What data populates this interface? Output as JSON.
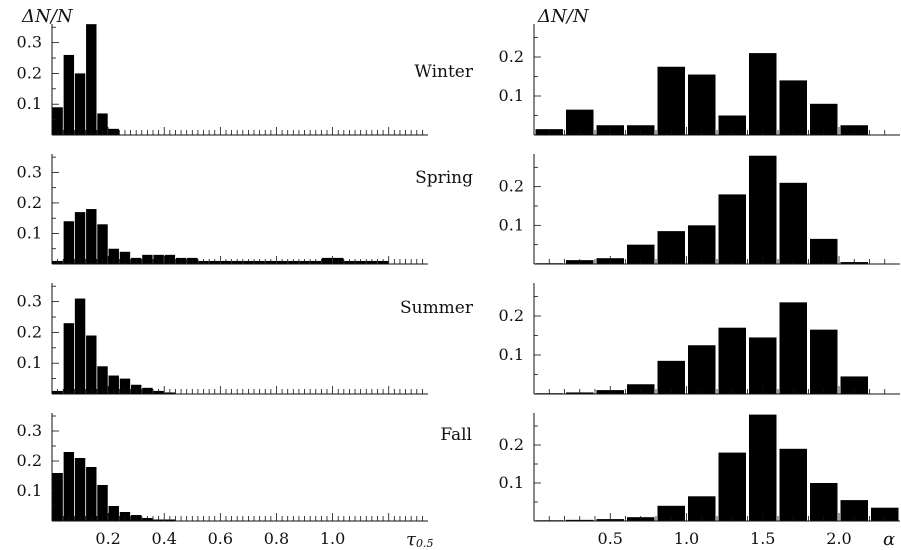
{
  "figure": {
    "ylabel_left": "ΔN/N",
    "ylabel_right": "ΔN/N",
    "xlabel_left": "τ",
    "xlabel_left_sub": "0.5",
    "xlabel_right": "α"
  },
  "chart_data": [
    {
      "type": "bar",
      "panel": "left",
      "season": "Winter",
      "xlim": [
        0.0,
        1.34
      ],
      "ylim": [
        0.0,
        0.38
      ],
      "bin_width": 0.04,
      "bin_starts": [
        0.0,
        0.04,
        0.08,
        0.12,
        0.16,
        0.2
      ],
      "values": [
        0.09,
        0.26,
        0.2,
        0.36,
        0.07,
        0.02
      ],
      "yticks": [
        0.1,
        0.2,
        0.3
      ],
      "ytick_labels": [
        "0.1",
        "0.2",
        "0.3"
      ]
    },
    {
      "type": "bar",
      "panel": "left",
      "season": "Spring",
      "xlim": [
        0.0,
        1.34
      ],
      "ylim": [
        0.0,
        0.38
      ],
      "bin_width": 0.04,
      "bin_starts": [
        0.0,
        0.04,
        0.08,
        0.12,
        0.16,
        0.2,
        0.24,
        0.28,
        0.32,
        0.36,
        0.4,
        0.44,
        0.48,
        0.52,
        0.56,
        0.6,
        0.64,
        0.68,
        0.72,
        0.76,
        0.8,
        0.84,
        0.88,
        0.92,
        0.96,
        1.0,
        1.04,
        1.08,
        1.12,
        1.16
      ],
      "values": [
        0.01,
        0.14,
        0.17,
        0.18,
        0.13,
        0.05,
        0.04,
        0.02,
        0.03,
        0.03,
        0.03,
        0.02,
        0.02,
        0.01,
        0.01,
        0.01,
        0.01,
        0.01,
        0.01,
        0.01,
        0.01,
        0.01,
        0.01,
        0.01,
        0.02,
        0.02,
        0.01,
        0.01,
        0.01,
        0.01
      ],
      "yticks": [
        0.1,
        0.2,
        0.3
      ],
      "ytick_labels": [
        "0.1",
        "0.2",
        "0.3"
      ]
    },
    {
      "type": "bar",
      "panel": "left",
      "season": "Summer",
      "xlim": [
        0.0,
        1.34
      ],
      "ylim": [
        0.0,
        0.38
      ],
      "bin_width": 0.04,
      "bin_starts": [
        0.0,
        0.04,
        0.08,
        0.12,
        0.16,
        0.2,
        0.24,
        0.28,
        0.32,
        0.36,
        0.4
      ],
      "values": [
        0.01,
        0.23,
        0.31,
        0.19,
        0.09,
        0.06,
        0.05,
        0.03,
        0.02,
        0.01,
        0.005
      ],
      "yticks": [
        0.1,
        0.2,
        0.3
      ],
      "ytick_labels": [
        "0.1",
        "0.2",
        "0.3"
      ]
    },
    {
      "type": "bar",
      "panel": "left",
      "season": "Fall",
      "xlim": [
        0.0,
        1.34
      ],
      "ylim": [
        0.0,
        0.38
      ],
      "bin_width": 0.04,
      "bin_starts": [
        0.0,
        0.04,
        0.08,
        0.12,
        0.16,
        0.2,
        0.24,
        0.28,
        0.32,
        0.36,
        0.4
      ],
      "values": [
        0.16,
        0.23,
        0.21,
        0.18,
        0.12,
        0.05,
        0.03,
        0.02,
        0.01,
        0.005,
        0.005
      ],
      "xticks": [
        0.2,
        0.4,
        0.6,
        0.8,
        1.0
      ],
      "xtick_labels": [
        "0.2",
        "0.4",
        "0.6",
        "0.8",
        "1.0"
      ],
      "yticks": [
        0.1,
        0.2,
        0.3
      ],
      "ytick_labels": [
        "0.1",
        "0.2",
        "0.3"
      ]
    },
    {
      "type": "bar",
      "panel": "right",
      "season": "Winter",
      "xlim": [
        0.0,
        2.4
      ],
      "ylim": [
        0.0,
        0.3
      ],
      "bin_width": 0.2,
      "bin_starts": [
        0.0,
        0.2,
        0.4,
        0.6,
        0.8,
        1.0,
        1.2,
        1.4,
        1.6,
        1.8,
        2.0
      ],
      "values": [
        0.015,
        0.065,
        0.025,
        0.025,
        0.175,
        0.155,
        0.05,
        0.21,
        0.14,
        0.08,
        0.025
      ],
      "yticks": [
        0.1,
        0.2
      ],
      "ytick_labels": [
        "0.1",
        "0.2"
      ]
    },
    {
      "type": "bar",
      "panel": "right",
      "season": "Spring",
      "xlim": [
        0.0,
        2.4
      ],
      "ylim": [
        0.0,
        0.3
      ],
      "bin_width": 0.2,
      "bin_starts": [
        0.0,
        0.2,
        0.4,
        0.6,
        0.8,
        1.0,
        1.2,
        1.4,
        1.6,
        1.8,
        2.0
      ],
      "values": [
        0.002,
        0.01,
        0.015,
        0.05,
        0.085,
        0.1,
        0.18,
        0.28,
        0.21,
        0.065,
        0.005
      ],
      "yticks": [
        0.1,
        0.2
      ],
      "ytick_labels": [
        "0.1",
        "0.2"
      ]
    },
    {
      "type": "bar",
      "panel": "right",
      "season": "Summer",
      "xlim": [
        0.0,
        2.4
      ],
      "ylim": [
        0.0,
        0.3
      ],
      "bin_width": 0.2,
      "bin_starts": [
        0.0,
        0.2,
        0.4,
        0.6,
        0.8,
        1.0,
        1.2,
        1.4,
        1.6,
        1.8,
        2.0
      ],
      "values": [
        0.002,
        0.004,
        0.01,
        0.025,
        0.085,
        0.125,
        0.17,
        0.145,
        0.235,
        0.165,
        0.045
      ],
      "yticks": [
        0.1,
        0.2
      ],
      "ytick_labels": [
        "0.1",
        "0.2"
      ]
    },
    {
      "type": "bar",
      "panel": "right",
      "season": "Fall",
      "xlim": [
        0.0,
        2.4
      ],
      "ylim": [
        0.0,
        0.3
      ],
      "bin_width": 0.2,
      "bin_starts": [
        0.0,
        0.2,
        0.4,
        0.6,
        0.8,
        1.0,
        1.2,
        1.4,
        1.6,
        1.8,
        2.0,
        2.2,
        2.4
      ],
      "values": [
        0.002,
        0.003,
        0.005,
        0.01,
        0.04,
        0.065,
        0.18,
        0.28,
        0.19,
        0.1,
        0.055,
        0.035,
        0.015
      ],
      "xticks": [
        0.5,
        1.0,
        1.5,
        2.0
      ],
      "xtick_labels": [
        "0.5",
        "1.0",
        "1.5",
        "2.0"
      ],
      "yticks": [
        0.1,
        0.2
      ],
      "ytick_labels": [
        "0.1",
        "0.2"
      ]
    }
  ]
}
